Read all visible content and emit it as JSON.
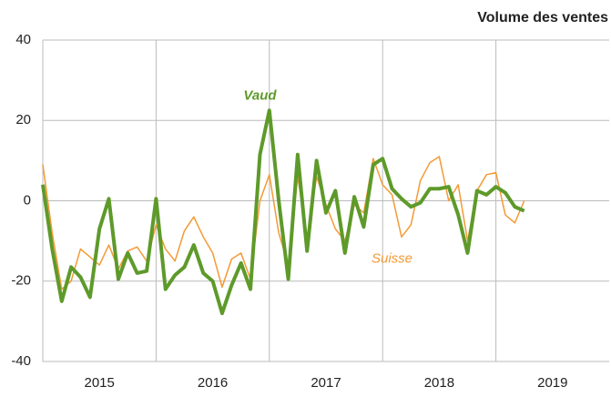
{
  "chart_data": {
    "type": "line",
    "title": "Volume des ventes",
    "annotations": [
      {
        "text": "Vaud",
        "x": 2016.917,
        "y": 26,
        "color": "#5e9a2a"
      },
      {
        "text": "Suisse",
        "x": 2018.083,
        "y": -14.5,
        "color": "#f39a34"
      }
    ],
    "x": [
      2015,
      2015.083,
      2015.167,
      2015.25,
      2015.333,
      2015.417,
      2015.5,
      2015.583,
      2015.667,
      2015.75,
      2015.833,
      2015.917,
      2016,
      2016.083,
      2016.167,
      2016.25,
      2016.333,
      2016.417,
      2016.5,
      2016.583,
      2016.667,
      2016.75,
      2016.833,
      2016.917,
      2017,
      2017.083,
      2017.167,
      2017.25,
      2017.333,
      2017.417,
      2017.5,
      2017.583,
      2017.667,
      2017.75,
      2017.833,
      2017.917,
      2018,
      2018.083,
      2018.167,
      2018.25,
      2018.333,
      2018.417,
      2018.5,
      2018.583,
      2018.667,
      2018.75,
      2018.833,
      2018.917,
      2019,
      2019.083,
      2019.167,
      2019.25
    ],
    "series": [
      {
        "name": "Suisse",
        "color": "#f39a34",
        "width": 1.5,
        "values": [
          9,
          -8,
          -22,
          -20,
          -12,
          -14,
          -16,
          -11,
          -17,
          -12.5,
          -11.5,
          -15,
          -6,
          -12,
          -15,
          -7.5,
          -4,
          -9,
          -13,
          -21.5,
          -14.5,
          -13,
          -19.5,
          0,
          6.5,
          -8,
          -16,
          6,
          -9,
          6,
          -1,
          -7,
          -10,
          -1,
          -3,
          10.5,
          4,
          1.5,
          -9,
          -6,
          5,
          9.5,
          11,
          0,
          4,
          -10,
          2.5,
          6.5,
          7,
          -3.5,
          -5.5,
          0
        ]
      },
      {
        "name": "Vaud",
        "color": "#5e9a2a",
        "width": 4,
        "values": [
          4,
          -12,
          -25,
          -16.5,
          -19,
          -24,
          -7,
          0.5,
          -19.5,
          -13,
          -18,
          -17.5,
          0.5,
          -22,
          -18.5,
          -16.5,
          -11,
          -18,
          -20,
          -28,
          -21,
          -15.5,
          -22,
          11.5,
          22.5,
          0,
          -19.5,
          11.5,
          -12.5,
          10,
          -3,
          2.5,
          -13,
          1,
          -6.5,
          9,
          10.5,
          3,
          0.5,
          -1.5,
          -0.5,
          3,
          3,
          3.5,
          -3.5,
          -13,
          2.5,
          1.5,
          3.5,
          2,
          -1.5,
          -2.5
        ]
      }
    ],
    "xlim": [
      2015,
      2020
    ],
    "xticks": [
      {
        "value": 2015.5,
        "label": "2015"
      },
      {
        "value": 2016.5,
        "label": "2016"
      },
      {
        "value": 2017.5,
        "label": "2017"
      },
      {
        "value": 2018.5,
        "label": "2018"
      },
      {
        "value": 2019.5,
        "label": "2019"
      }
    ],
    "xgrid": [
      2016,
      2017,
      2018,
      2019
    ],
    "ylim": [
      -40,
      40
    ],
    "yticks": [
      -40,
      -20,
      0,
      20,
      40
    ],
    "grid": true
  }
}
